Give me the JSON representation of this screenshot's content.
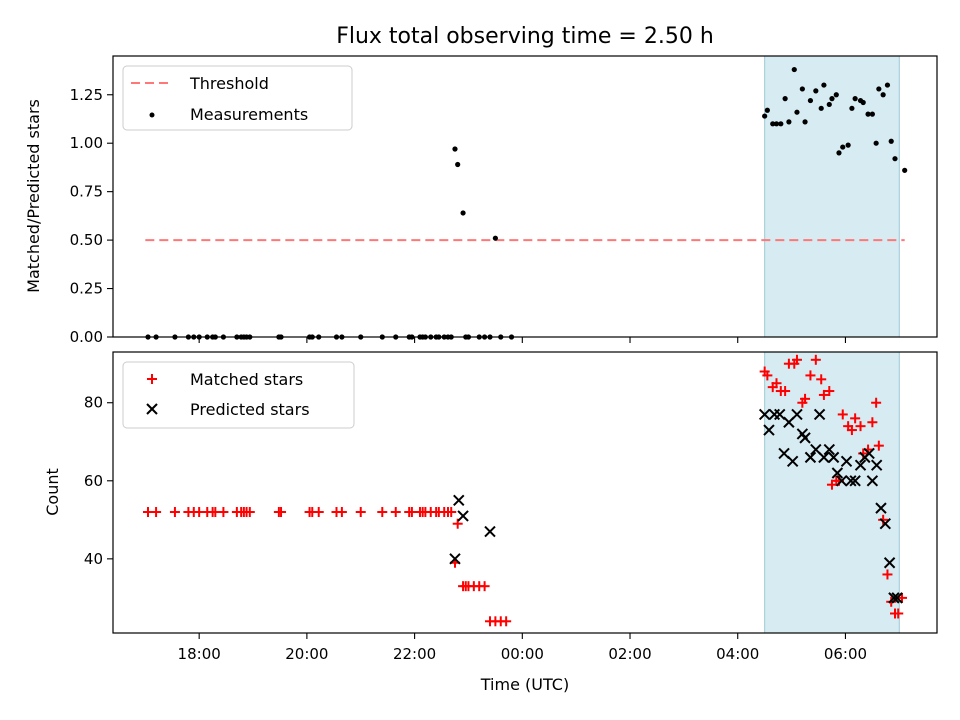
{
  "chart_data": [
    {
      "panel": "top",
      "type": "scatter",
      "title": "Flux total observing time = 2.50 h",
      "ylabel": "Matched/Predicted stars",
      "xlabel": "",
      "xlim_hours": [
        16.4,
        31.7
      ],
      "ylim": [
        0,
        1.45
      ],
      "yticks": [
        0.0,
        0.25,
        0.5,
        0.75,
        1.0,
        1.25
      ],
      "ytick_labels": [
        "0.00",
        "0.25",
        "0.50",
        "0.75",
        "1.00",
        "1.25"
      ],
      "highlight_span_hours": [
        28.5,
        31.0
      ],
      "highlight_color": "#add8e6",
      "threshold": {
        "name": "Threshold",
        "value": 0.5,
        "x_range_hours": [
          17.0,
          31.1
        ],
        "color": "#ff7777"
      },
      "legend": [
        "Threshold",
        "Measurements"
      ],
      "legend_loc": "upper-left",
      "series": [
        {
          "name": "Measurements",
          "color": "#000000",
          "marker": "dot",
          "x": [
            17.05,
            17.2,
            17.55,
            17.8,
            17.9,
            18.0,
            18.15,
            18.25,
            18.3,
            18.45,
            18.7,
            18.78,
            18.83,
            18.88,
            18.94,
            19.48,
            19.52,
            20.05,
            20.1,
            20.22,
            20.55,
            20.65,
            21.0,
            21.4,
            21.65,
            21.9,
            21.95,
            22.1,
            22.15,
            22.2,
            22.3,
            22.4,
            22.45,
            22.55,
            22.62,
            22.68,
            22.75,
            22.8,
            22.9,
            22.95,
            23.0,
            23.2,
            23.3,
            23.4,
            23.5,
            23.6,
            23.8,
            28.5,
            28.55,
            28.65,
            28.72,
            28.8,
            28.88,
            28.95,
            29.05,
            29.1,
            29.2,
            29.25,
            29.35,
            29.45,
            29.55,
            29.6,
            29.7,
            29.75,
            29.83,
            29.88,
            29.95,
            30.05,
            30.12,
            30.18,
            30.28,
            30.33,
            30.42,
            30.5,
            30.57,
            30.62,
            30.7,
            30.78,
            30.85,
            30.92,
            31.1
          ],
          "y": [
            0,
            0,
            0,
            0,
            0,
            0,
            0,
            0,
            0,
            0,
            0,
            0,
            0,
            0,
            0,
            0,
            0,
            0,
            0,
            0,
            0,
            0,
            0,
            0,
            0,
            0,
            0,
            0,
            0,
            0,
            0,
            0,
            0,
            0,
            0,
            0,
            0.97,
            0.89,
            0.64,
            0,
            0,
            0,
            0,
            0,
            0.51,
            0,
            0,
            1.14,
            1.17,
            1.1,
            1.1,
            1.1,
            1.23,
            1.11,
            1.38,
            1.16,
            1.28,
            1.11,
            1.22,
            1.27,
            1.18,
            1.3,
            1.2,
            1.23,
            1.25,
            0.95,
            0.98,
            0.99,
            1.18,
            1.23,
            1.22,
            1.21,
            1.15,
            1.15,
            1.0,
            1.28,
            1.25,
            1.3,
            1.01,
            0.92,
            0.86
          ]
        }
      ]
    },
    {
      "panel": "bottom",
      "type": "scatter",
      "title": "",
      "ylabel": "Count",
      "xlabel": "Time (UTC)",
      "xlim_hours": [
        16.4,
        31.7
      ],
      "ylim": [
        21,
        93
      ],
      "yticks": [
        40,
        60,
        80
      ],
      "ytick_labels": [
        "40",
        "60",
        "80"
      ],
      "xticks_hours": [
        18,
        20,
        22,
        24,
        26,
        28,
        30
      ],
      "xtick_labels": [
        "18:00",
        "20:00",
        "22:00",
        "00:00",
        "02:00",
        "04:00",
        "06:00"
      ],
      "highlight_span_hours": [
        28.5,
        31.0
      ],
      "highlight_color": "#add8e6",
      "legend": [
        "Matched stars",
        "Predicted stars"
      ],
      "legend_loc": "upper-left",
      "series": [
        {
          "name": "Matched stars",
          "color": "#ff0000",
          "marker": "plus",
          "x": [
            17.05,
            17.2,
            17.55,
            17.8,
            17.9,
            18.0,
            18.15,
            18.25,
            18.3,
            18.45,
            18.7,
            18.78,
            18.83,
            18.88,
            18.94,
            19.48,
            19.52,
            20.05,
            20.1,
            20.22,
            20.55,
            20.65,
            21.0,
            21.4,
            21.65,
            21.9,
            21.95,
            22.1,
            22.15,
            22.2,
            22.3,
            22.4,
            22.45,
            22.55,
            22.62,
            22.68,
            22.75,
            22.8,
            22.9,
            22.95,
            23.0,
            23.1,
            23.2,
            23.3,
            23.4,
            23.5,
            23.6,
            23.7,
            28.5,
            28.55,
            28.65,
            28.72,
            28.8,
            28.88,
            28.95,
            29.05,
            29.1,
            29.2,
            29.25,
            29.35,
            29.45,
            29.55,
            29.6,
            29.7,
            29.75,
            29.83,
            29.88,
            29.95,
            30.05,
            30.12,
            30.18,
            30.28,
            30.33,
            30.42,
            30.5,
            30.57,
            30.62,
            30.7,
            30.78,
            30.85,
            30.92,
            30.98,
            31.05
          ],
          "y": [
            52,
            52,
            52,
            52,
            52,
            52,
            52,
            52,
            52,
            52,
            52,
            52,
            52,
            52,
            52,
            52,
            52,
            52,
            52,
            52,
            52,
            52,
            52,
            52,
            52,
            52,
            52,
            52,
            52,
            52,
            52,
            52,
            52,
            52,
            52,
            52,
            39,
            49,
            33,
            33,
            33,
            33,
            33,
            33,
            24,
            24,
            24,
            24,
            88,
            87,
            84,
            85,
            83,
            83,
            90,
            90,
            91,
            80,
            81,
            87,
            91,
            86,
            82,
            83,
            59,
            60,
            60,
            77,
            74,
            73,
            76,
            74,
            67,
            68,
            75,
            80,
            69,
            50,
            36,
            29,
            26,
            26,
            30
          ]
        },
        {
          "name": "Predicted stars",
          "color": "#000000",
          "marker": "x",
          "x": [
            22.75,
            22.82,
            22.9,
            23.4,
            28.5,
            28.58,
            28.68,
            28.78,
            28.86,
            28.95,
            29.02,
            29.1,
            29.2,
            29.25,
            29.35,
            29.45,
            29.52,
            29.6,
            29.7,
            29.78,
            29.85,
            29.93,
            30.02,
            30.1,
            30.18,
            30.28,
            30.36,
            30.44,
            30.5,
            30.58,
            30.66,
            30.74,
            30.82,
            30.9,
            30.96
          ],
          "y": [
            40,
            55,
            51,
            47,
            77,
            73,
            77,
            77,
            67,
            75,
            65,
            77,
            72,
            71,
            66,
            68,
            77,
            66,
            68,
            66,
            62,
            60,
            65,
            60,
            60,
            64,
            66,
            67,
            60,
            64,
            53,
            49,
            39,
            30,
            30
          ]
        }
      ]
    }
  ]
}
